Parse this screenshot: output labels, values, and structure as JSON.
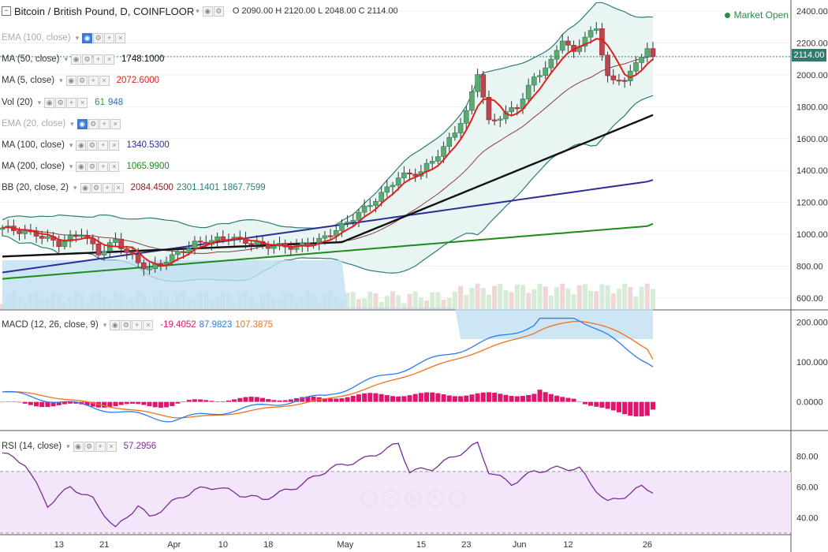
{
  "header": {
    "symbol": "Bitcoin / British Pound, D, COINFLOOR",
    "ohlc": "O 2090.00  H 2120.00  L 2048.00  C 2114.00",
    "status": "Market Open",
    "last_price": "2114.00"
  },
  "indicators": [
    {
      "name": "EMA (100, close)",
      "dim": true,
      "values": []
    },
    {
      "name": "MA (50, close)",
      "dim": false,
      "values": [
        {
          "v": "1748.1000",
          "c": "#111111"
        }
      ]
    },
    {
      "name": "MA (5, close)",
      "dim": false,
      "values": [
        {
          "v": "2072.6000",
          "c": "#e0201b"
        }
      ]
    },
    {
      "name": "Vol (20)",
      "dim": false,
      "values": [
        {
          "v": "61",
          "c": "#2c9d2c"
        },
        {
          "v": "948",
          "c": "#2b6cc4"
        }
      ]
    },
    {
      "name": "EMA (20, close)",
      "dim": true,
      "values": []
    },
    {
      "name": "MA (100, close)",
      "dim": false,
      "values": [
        {
          "v": "1340.5300",
          "c": "#2c2c9a"
        }
      ]
    },
    {
      "name": "MA (200, close)",
      "dim": false,
      "values": [
        {
          "v": "1065.9900",
          "c": "#1e8a1e"
        }
      ]
    },
    {
      "name": "BB (20, close, 2)",
      "dim": false,
      "values": [
        {
          "v": "2084.4500",
          "c": "#8c1c1c"
        },
        {
          "v": "2301.1401",
          "c": "#2a7d76"
        },
        {
          "v": "1867.7599",
          "c": "#2a7d76"
        }
      ]
    }
  ],
  "macd_legend": {
    "name": "MACD (12, 26, close, 9)",
    "values": [
      {
        "v": "-19.4052",
        "c": "#e0156c"
      },
      {
        "v": "87.9823",
        "c": "#2b7de9"
      },
      {
        "v": "107.3875",
        "c": "#f07020"
      }
    ]
  },
  "rsi_legend": {
    "name": "RSI (14, close)",
    "values": [
      {
        "v": "57.2956",
        "c": "#7b2a9a"
      }
    ]
  },
  "chart_data": [
    {
      "type": "candlestick",
      "panel": "price",
      "title": "Bitcoin / British Pound, D, COINFLOOR",
      "y_ticks": [
        600,
        800,
        1000,
        1200,
        1400,
        1600,
        1800,
        2000,
        2200,
        2400
      ],
      "ylim": [
        530,
        2440
      ],
      "x_ticks": [
        "13",
        "21",
        "Apr",
        "10",
        "18",
        "May",
        "15",
        "23",
        "Jun",
        "12",
        "26"
      ],
      "x_tick_index": [
        10,
        18,
        30,
        39,
        47,
        60,
        74,
        82,
        91,
        100,
        114
      ],
      "volume_ylim": [
        0,
        1700
      ],
      "series": [
        {
          "name": "MA (50, close)",
          "color": "#111111",
          "last": 1748.1
        },
        {
          "name": "MA (5, close)",
          "color": "#e0201b",
          "last": 2072.6
        },
        {
          "name": "MA (100, close)",
          "color": "#2c2c9a",
          "last": 1340.53
        },
        {
          "name": "MA (200, close)",
          "color": "#1e8a1e",
          "last": 1065.99
        },
        {
          "name": "BB (20, close, 2)",
          "color": "#2a7d76",
          "basis": 2084.45,
          "upper": 2301.14,
          "lower": 1867.76
        },
        {
          "name": "Vol (20)",
          "last_volume": 61,
          "volume_ma": 948
        }
      ]
    },
    {
      "type": "line",
      "panel": "macd",
      "title": "MACD (12, 26, close, 9)",
      "y_ticks": [
        0,
        100,
        200
      ],
      "ylim": [
        -70,
        225
      ],
      "series": [
        {
          "name": "histogram",
          "color": "#e0156c",
          "last": -19.4052
        },
        {
          "name": "MACD",
          "color": "#2b7de9",
          "last": 87.9823
        },
        {
          "name": "signal",
          "color": "#f07020",
          "last": 107.3875
        }
      ]
    },
    {
      "type": "line",
      "panel": "rsi",
      "title": "RSI (14, close)",
      "y_ticks": [
        40,
        60,
        80
      ],
      "ylim": [
        30,
        95
      ],
      "bands": [
        30,
        70
      ],
      "series": [
        {
          "name": "RSI (14, close)",
          "color": "#7b2a9a",
          "last": 57.2956
        }
      ]
    }
  ]
}
